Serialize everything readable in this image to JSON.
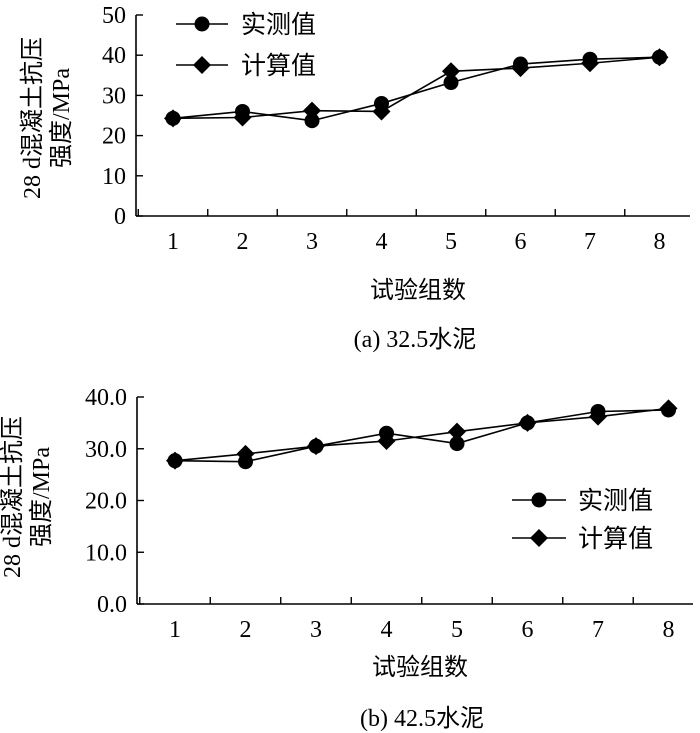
{
  "chart_data": [
    {
      "type": "line",
      "caption": "(a) 32.5水泥",
      "xlabel": "试验组数",
      "ylabel_lines": [
        "28 d混凝土抗压",
        "强度/MPa"
      ],
      "categories": [
        "1",
        "2",
        "3",
        "4",
        "5",
        "6",
        "7",
        "8"
      ],
      "ylim": [
        0,
        50
      ],
      "yticks": [
        "0",
        "10",
        "20",
        "30",
        "40",
        "50"
      ],
      "grid": false,
      "legend": "top-left",
      "series": [
        {
          "name": "实测值",
          "marker": "circle",
          "values": [
            24.3,
            26.0,
            23.7,
            28.0,
            33.2,
            37.8,
            39.0,
            39.5
          ]
        },
        {
          "name": "计算值",
          "marker": "diamond",
          "values": [
            24.3,
            24.5,
            26.2,
            26.0,
            36.0,
            36.8,
            38.0,
            39.5
          ]
        }
      ]
    },
    {
      "type": "line",
      "caption": "(b) 42.5水泥",
      "xlabel": "试验组数",
      "ylabel_lines": [
        "28 d混凝土抗压",
        "强度/MPa"
      ],
      "categories": [
        "1",
        "2",
        "3",
        "4",
        "5",
        "6",
        "7",
        "8"
      ],
      "ylim": [
        0,
        40
      ],
      "yticks": [
        "0.0",
        "10.0",
        "20.0",
        "30.0",
        "40.0"
      ],
      "grid": false,
      "legend": "center-right",
      "series": [
        {
          "name": "实测值",
          "marker": "circle",
          "values": [
            27.7,
            27.5,
            30.5,
            33.0,
            31.0,
            35.0,
            37.2,
            37.5
          ]
        },
        {
          "name": "计算值",
          "marker": "diamond",
          "values": [
            27.7,
            29.0,
            30.5,
            31.5,
            33.3,
            35.0,
            36.2,
            37.8
          ]
        }
      ]
    }
  ]
}
